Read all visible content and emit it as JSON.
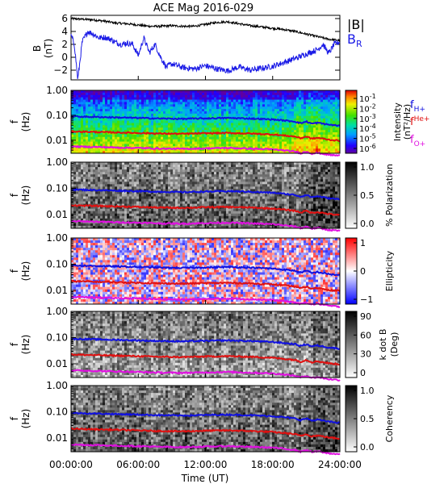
{
  "title": "ACE Mag 2016-029",
  "time_axis": {
    "label": "Time (UT)",
    "ticks": [
      "00:00:00",
      "06:00:00",
      "12:00:00",
      "18:00:00",
      "24:00:00"
    ],
    "tick_hours": [
      0,
      6,
      12,
      18,
      24
    ]
  },
  "freq_axis": {
    "label_top": "f",
    "label_bottom": "(Hz)",
    "ticks": [
      "1.00",
      "0.10",
      "0.01"
    ],
    "tick_values": [
      1.0,
      0.1,
      0.01
    ]
  },
  "line_legend": {
    "h": {
      "base": "f",
      "sub": "H+",
      "color": "#1010e0"
    },
    "he": {
      "base": "f",
      "sub": "He+",
      "color": "#e01010"
    },
    "o": {
      "base": "f",
      "sub": "O+",
      "color": "#e010e0"
    }
  },
  "colors": {
    "B_total": "#000000",
    "B_R": "#1a1ae6",
    "f_H": "#1010e0",
    "f_He": "#e01010",
    "f_O": "#e010e0"
  },
  "colorbars": {
    "intensity": {
      "label_line1": "Intensity",
      "label_line2": "(nT²/Hz)",
      "tick_bases": [
        "10",
        "10",
        "10",
        "10",
        "10",
        "10"
      ],
      "tick_exps": [
        "-1",
        "-2",
        "-3",
        "-4",
        "-5",
        "-6"
      ]
    },
    "polarization": {
      "label": "% Polarization",
      "ticks": [
        "1.0",
        "0.5",
        "0.0"
      ]
    },
    "ellipticity": {
      "label": "Ellipticity",
      "ticks": [
        "1",
        "0",
        "−1"
      ]
    },
    "kdotb": {
      "label_line1": "k dot B",
      "label_line2": "(Deg)",
      "ticks": [
        "90",
        "60",
        "30",
        "0"
      ]
    },
    "coherency": {
      "label": "Coherency",
      "ticks": [
        "1.0",
        "0.5",
        "0.0"
      ]
    }
  },
  "chart_data": [
    {
      "type": "line",
      "panel": "magnetic_field",
      "ylabel_top": "B",
      "ylabel_bottom": "(nT)",
      "ylim": [
        -3.5,
        6.5
      ],
      "yticks": [
        "6",
        "4",
        "2",
        "0",
        "−2"
      ],
      "ytick_values": [
        6,
        4,
        2,
        0,
        -2
      ],
      "xlim": [
        0,
        24
      ],
      "legend": {
        "btotal": "|B|",
        "br_base": "B",
        "br_sub": "R"
      },
      "series": [
        {
          "name": "|B|",
          "x": [
            0,
            1,
            2,
            3,
            4,
            5,
            6,
            7,
            8,
            9,
            10,
            11,
            12,
            13,
            14,
            15,
            16,
            17,
            18,
            19,
            20,
            21,
            22,
            23,
            24
          ],
          "values": [
            6.0,
            5.9,
            5.8,
            5.6,
            5.3,
            5.2,
            5.0,
            4.8,
            4.8,
            4.9,
            4.8,
            4.8,
            5.1,
            5.4,
            5.5,
            5.2,
            4.9,
            4.7,
            4.5,
            4.3,
            4.0,
            3.6,
            3.2,
            2.8,
            2.6
          ]
        },
        {
          "name": "B_R",
          "x": [
            0,
            0.3,
            0.6,
            1,
            1.5,
            2,
            2.5,
            3,
            3.5,
            4,
            4.5,
            5,
            5.5,
            6,
            6.5,
            7,
            7.5,
            8,
            8.5,
            9,
            10,
            11,
            12,
            13,
            14,
            15,
            16,
            17,
            18,
            19,
            20,
            21,
            22,
            22.5,
            23,
            23.5,
            24
          ],
          "values": [
            3.4,
            2.0,
            -3.5,
            2.4,
            4.0,
            3.6,
            3.0,
            3.1,
            2.8,
            2.3,
            2.0,
            2.2,
            2.0,
            0.3,
            3.0,
            0.7,
            2.0,
            0.0,
            -1.5,
            -1.0,
            -1.6,
            -1.8,
            -1.3,
            -1.8,
            -2.1,
            -1.5,
            -2.0,
            -1.7,
            -1.4,
            -0.8,
            -0.2,
            0.5,
            1.2,
            2.0,
            0.6,
            2.0,
            2.4
          ]
        }
      ]
    },
    {
      "type": "heatmap",
      "panel": "wave_intensity_spectrogram",
      "ylabel": "f (Hz)",
      "yscale": "log",
      "ylim": [
        0.003,
        1.0
      ],
      "xlim": [
        0,
        24
      ],
      "colorbar": "intensity",
      "overlay_lines": "gyrofrequencies"
    },
    {
      "type": "heatmap",
      "panel": "percent_polarization",
      "ylabel": "f (Hz)",
      "yscale": "log",
      "ylim": [
        0.003,
        1.0
      ],
      "xlim": [
        0,
        24
      ],
      "colorbar": "polarization",
      "overlay_lines": "gyrofrequencies"
    },
    {
      "type": "heatmap",
      "panel": "ellipticity",
      "ylabel": "f (Hz)",
      "yscale": "log",
      "ylim": [
        0.003,
        1.0
      ],
      "xlim": [
        0,
        24
      ],
      "colorbar": "ellipticity",
      "overlay_lines": "gyrofrequencies"
    },
    {
      "type": "heatmap",
      "panel": "k_dot_B",
      "ylabel": "f (Hz)",
      "yscale": "log",
      "ylim": [
        0.003,
        1.0
      ],
      "xlim": [
        0,
        24
      ],
      "colorbar": "kdotb",
      "overlay_lines": "gyrofrequencies"
    },
    {
      "type": "heatmap",
      "panel": "coherency",
      "ylabel": "f (Hz)",
      "yscale": "log",
      "ylim": [
        0.003,
        1.0
      ],
      "xlim": [
        0,
        24
      ],
      "colorbar": "coherency",
      "overlay_lines": "gyrofrequencies"
    }
  ],
  "gyrofrequencies": {
    "x": [
      0,
      2,
      4,
      6,
      8,
      10,
      12,
      14,
      16,
      18,
      19,
      20,
      20.5,
      21,
      21.5,
      22,
      23,
      24
    ],
    "f_H": [
      0.09,
      0.086,
      0.082,
      0.078,
      0.074,
      0.072,
      0.075,
      0.078,
      0.074,
      0.068,
      0.062,
      0.056,
      0.048,
      0.056,
      0.046,
      0.05,
      0.042,
      0.038
    ],
    "f_He": [
      0.0225,
      0.0215,
      0.0205,
      0.0195,
      0.0185,
      0.018,
      0.019,
      0.0195,
      0.0185,
      0.017,
      0.0155,
      0.014,
      0.012,
      0.014,
      0.0115,
      0.0125,
      0.0105,
      0.0095
    ],
    "f_O": [
      0.0056,
      0.0054,
      0.0051,
      0.0049,
      0.0046,
      0.0045,
      0.0047,
      0.0049,
      0.0046,
      0.0043,
      0.0039,
      0.0035,
      0.003,
      0.0035,
      0.0029,
      0.0031,
      0.0026,
      0.0024
    ]
  }
}
